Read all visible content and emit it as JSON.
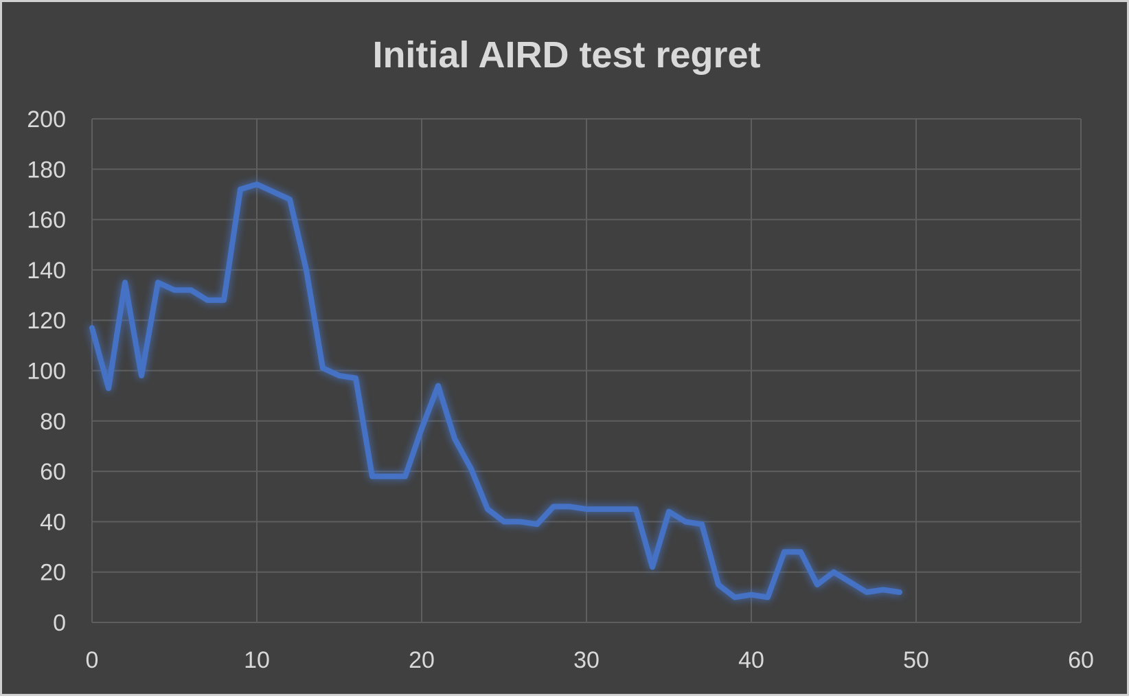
{
  "chart_data": {
    "type": "line",
    "title": "Initial AIRD test regret",
    "xlabel": "",
    "ylabel": "",
    "xlim": [
      0,
      60
    ],
    "ylim": [
      0,
      200
    ],
    "x_ticks": [
      0,
      10,
      20,
      30,
      40,
      50,
      60
    ],
    "y_ticks": [
      0,
      20,
      40,
      60,
      80,
      100,
      120,
      140,
      160,
      180,
      200
    ],
    "grid": true,
    "legend": "none",
    "series": [
      {
        "color": "#4472c4",
        "x": [
          0,
          1,
          2,
          3,
          4,
          5,
          6,
          7,
          8,
          9,
          10,
          11,
          12,
          13,
          14,
          15,
          16,
          17,
          18,
          19,
          20,
          21,
          22,
          23,
          24,
          25,
          26,
          27,
          28,
          29,
          30,
          31,
          32,
          33,
          34,
          35,
          36,
          37,
          38,
          39,
          40,
          41,
          42,
          43,
          44,
          45,
          46,
          47,
          48,
          49
        ],
        "y": [
          117,
          93,
          135,
          98,
          135,
          132,
          132,
          128,
          128,
          172,
          174,
          171,
          168,
          140,
          101,
          98,
          97,
          58,
          58,
          58,
          77,
          94,
          73,
          61,
          45,
          40,
          40,
          39,
          46,
          46,
          45,
          45,
          45,
          45,
          22,
          44,
          40,
          39,
          15,
          10,
          11,
          10,
          28,
          28,
          15,
          20,
          16,
          12,
          13,
          12
        ]
      }
    ]
  }
}
